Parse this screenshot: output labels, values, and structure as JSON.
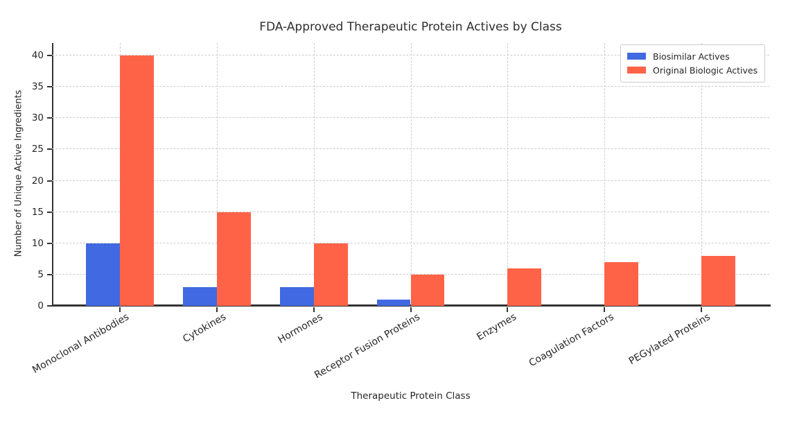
{
  "chart_data": {
    "type": "bar",
    "title": "FDA-Approved Therapeutic Protein Actives by Class",
    "xlabel": "Therapeutic Protein Class",
    "ylabel": "Number of Unique Active Ingredients",
    "categories": [
      "Monoclonal Antibodies",
      "Cytokines",
      "Hormones",
      "Receptor Fusion Proteins",
      "Enzymes",
      "Coagulation Factors",
      "PEGylated Proteins"
    ],
    "series": [
      {
        "name": "Biosimilar Actives",
        "color": "#4169E1",
        "values": [
          10,
          3,
          3,
          1,
          0,
          0,
          0
        ]
      },
      {
        "name": "Original Biologic Actives",
        "color": "#FF6347",
        "values": [
          40,
          15,
          10,
          5,
          6,
          7,
          8
        ]
      }
    ],
    "ylim": [
      0,
      42
    ],
    "yticks": [
      0,
      5,
      10,
      15,
      20,
      25,
      30,
      35,
      40
    ],
    "grid": true,
    "grid_style": "dashed",
    "legend_position": "upper right",
    "colors": {
      "biosimilar": "#4169E1",
      "original_biologic": "#FF6347",
      "spine": "#333333",
      "gridline": "#cccccc",
      "text": "#262626"
    }
  }
}
